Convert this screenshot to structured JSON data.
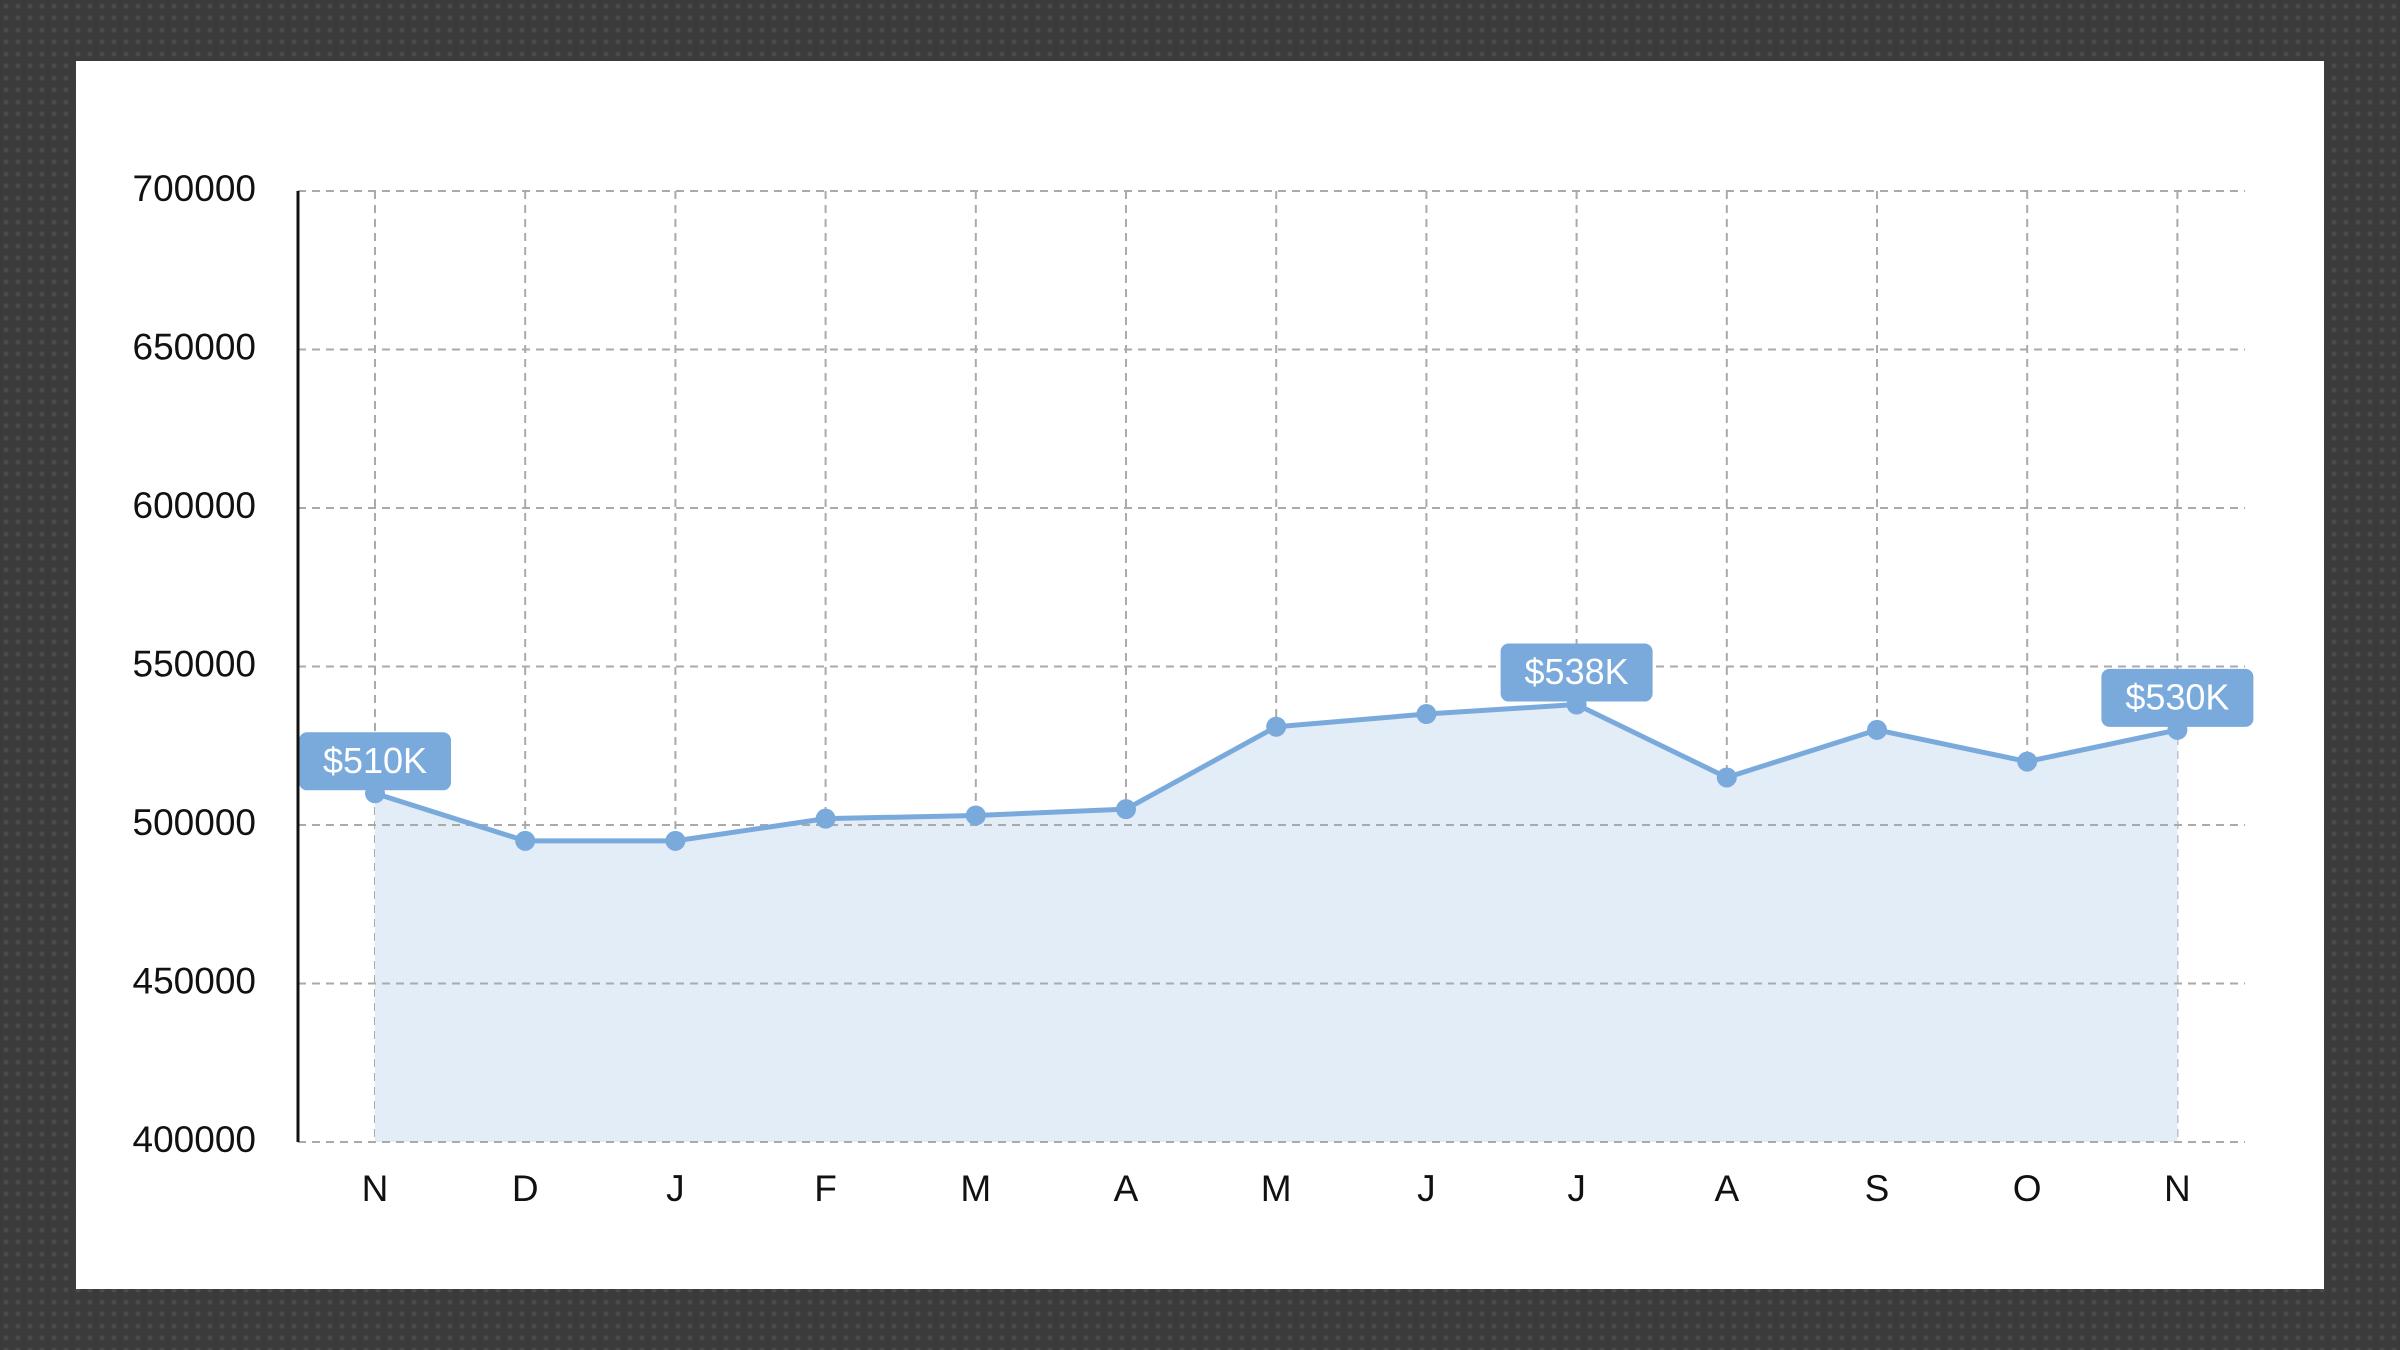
{
  "chart_data": {
    "type": "line",
    "categories": [
      "N",
      "D",
      "J",
      "F",
      "M",
      "A",
      "M",
      "J",
      "J",
      "A",
      "S",
      "O",
      "N"
    ],
    "values": [
      510000,
      495000,
      495000,
      502000,
      503000,
      505000,
      531000,
      535000,
      538000,
      515000,
      530000,
      520000,
      530000
    ],
    "value_labels": [
      "$510K",
      null,
      null,
      null,
      null,
      null,
      null,
      null,
      "$538K",
      null,
      null,
      null,
      "$530K"
    ],
    "color": "#7aaadc",
    "area_color": "#e3edf8",
    "ylim": [
      400000,
      700000
    ],
    "yticks": [
      400000,
      450000,
      500000,
      550000,
      600000,
      650000,
      700000
    ],
    "grid": true
  }
}
